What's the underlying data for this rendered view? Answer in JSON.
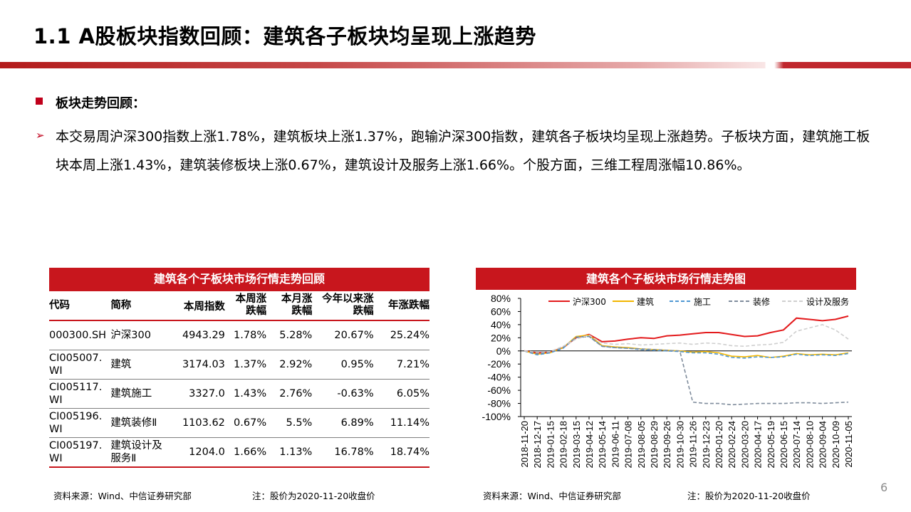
{
  "slide": {
    "title": "1.1 A股板块指数回顾：建筑各子板块均呈现上涨趋势",
    "section_heading": "板块走势回顾：",
    "bullet_text": "本交易周沪深300指数上涨1.78%，建筑板块上涨1.37%，跑输沪深300指数，建筑各子板块均呈现上涨趋势。子板块方面，建筑施工板块本周上涨1.43%，建筑装修板块上涨0.67%，建筑设计及服务上涨1.66%。个股方面，三维工程周涨幅10.86%。",
    "page_number": "6",
    "accent_color": "#c8161d"
  },
  "table": {
    "title": "建筑各个子板块市场行情走势回顾",
    "headers": {
      "code": "代码",
      "name": "简称",
      "index": "本周指数",
      "week": [
        "本周涨",
        "跌幅"
      ],
      "month": [
        "本月涨",
        "跌幅"
      ],
      "ytd": [
        "今年以来涨",
        "跌幅"
      ],
      "year": "年涨跌幅"
    },
    "rows": [
      {
        "code": [
          "000300.SH"
        ],
        "name": [
          "沪深300"
        ],
        "index": "4943.29",
        "week": "1.78%",
        "month": "5.28%",
        "ytd": "20.67%",
        "year": "25.24%"
      },
      {
        "code": [
          "CI005007.",
          "WI"
        ],
        "name": [
          "建筑"
        ],
        "index": "3174.03",
        "week": "1.37%",
        "month": "2.92%",
        "ytd": "0.95%",
        "year": "7.21%"
      },
      {
        "code": [
          "CI005117.",
          "WI"
        ],
        "name": [
          "建筑施工"
        ],
        "index": "3327.0",
        "week": "1.43%",
        "month": "2.76%",
        "ytd": "-0.63%",
        "year": "6.05%"
      },
      {
        "code": [
          "CI005196.",
          "WI"
        ],
        "name": [
          "建筑装修Ⅱ"
        ],
        "index": "1103.62",
        "week": "0.67%",
        "month": "5.5%",
        "ytd": "6.89%",
        "year": "11.14%"
      },
      {
        "code": [
          "CI005197.",
          "WI"
        ],
        "name": [
          "建筑设计及",
          "服务Ⅱ"
        ],
        "index": "1204.0",
        "week": "1.66%",
        "month": "1.13%",
        "ytd": "16.78%",
        "year": "18.74%"
      }
    ],
    "source": "资料来源：Wind、中信证券研究部",
    "note": "注：股价为2020-11-20收盘价"
  },
  "chart_data": {
    "type": "line",
    "title": "建筑各个子板块市场行情走势图",
    "y_ticks": [
      "80%",
      "60%",
      "40%",
      "20%",
      "0%",
      "-20%",
      "-40%",
      "-60%",
      "-80%",
      "-100%"
    ],
    "ylim": [
      -100,
      80
    ],
    "x_ticks": [
      "2018-11-20",
      "2018-12-17",
      "2019-01-15",
      "2019-02-18",
      "2019-03-15",
      "2019-04-12",
      "2019-05-14",
      "2019-06-11",
      "2019-07-08",
      "2019-08-05",
      "2019-08-29",
      "2019-09-26",
      "2019-10-30",
      "2019-11-26",
      "2019-12-23",
      "2020-01-20",
      "2020-02-24",
      "2020-03-20",
      "2020-04-17",
      "2020-05-19",
      "2020-06-15",
      "2020-07-14",
      "2020-08-10",
      "2020-09-04",
      "2020-10-09",
      "2020-11-05"
    ],
    "legend_position": "top",
    "series": [
      {
        "name": "沪深300",
        "color": "#e31a1c",
        "style": "solid",
        "values": [
          0,
          -3,
          -2,
          5,
          20,
          25,
          14,
          15,
          18,
          20,
          19,
          23,
          24,
          26,
          28,
          28,
          25,
          22,
          23,
          28,
          32,
          50,
          48,
          46,
          48,
          53
        ]
      },
      {
        "name": "建筑",
        "color": "#f2b600",
        "style": "solid",
        "values": [
          0,
          -5,
          -3,
          5,
          22,
          24,
          8,
          6,
          5,
          3,
          2,
          1,
          0,
          -2,
          -1,
          -3,
          -8,
          -9,
          -7,
          -10,
          -8,
          -4,
          -6,
          -5,
          -6,
          -3
        ]
      },
      {
        "name": "施工",
        "color": "#4f97d3",
        "style": "dashed",
        "values": [
          0,
          -6,
          -3,
          4,
          21,
          22,
          7,
          5,
          4,
          2,
          1,
          0,
          -1,
          -3,
          -3,
          -5,
          -10,
          -11,
          -9,
          -10,
          -9,
          -5,
          -7,
          -6,
          -7,
          -4
        ]
      },
      {
        "name": "装修",
        "color": "#7f8c9c",
        "style": "dashed",
        "values": [
          0,
          -4,
          -2,
          6,
          20,
          22,
          7,
          5,
          4,
          3,
          2,
          1,
          0,
          -78,
          -80,
          -80,
          -82,
          -81,
          -80,
          -80,
          -80,
          -79,
          -79,
          -80,
          -79,
          -78
        ]
      },
      {
        "name": "设计及服务",
        "color": "#cfcfcf",
        "style": "dashed",
        "values": [
          0,
          -2,
          -1,
          7,
          18,
          24,
          12,
          10,
          11,
          9,
          10,
          11,
          12,
          10,
          12,
          11,
          8,
          7,
          9,
          10,
          13,
          30,
          35,
          40,
          32,
          18
        ]
      }
    ],
    "source": "资料来源：Wind、中信证券研究部",
    "note": "注：股价为2020-11-20收盘价"
  }
}
